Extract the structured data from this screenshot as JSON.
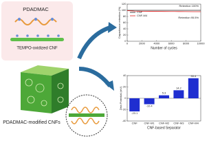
{
  "diagram": {
    "pdadmac": "PDADMAC",
    "tempo": "TEMPO-oxidized CNF",
    "modified": "PDADMAC-modified CNFs"
  },
  "chart_data": [
    {
      "type": "line",
      "x_label": "Number of cycles",
      "y_label": "Capacitance retention (%)",
      "x": [
        0,
        1000,
        2000,
        3000,
        4000,
        5000,
        6000,
        7000,
        8000,
        9000,
        10000
      ],
      "series": [
        {
          "name": "CNF",
          "color": "#222222",
          "values": [
            100,
            100,
            100,
            100,
            100,
            100,
            100,
            100,
            100,
            100,
            100
          ]
        },
        {
          "name": "CNF-M4",
          "color": "#e02020",
          "values": [
            99,
            97.5,
            97,
            96.8,
            96.5,
            96.3,
            96.1,
            96,
            95.8,
            95.6,
            95.5
          ]
        }
      ],
      "annotations": [
        "Retention 100%",
        "Retention 95.5%"
      ],
      "xlim": [
        0,
        10000
      ],
      "xticks": [
        0,
        2000,
        4000,
        6000,
        8000,
        10000
      ],
      "ylim": [
        0,
        120
      ],
      "yticks": [
        0,
        20,
        40,
        60,
        80,
        100,
        120
      ]
    },
    {
      "type": "bar",
      "x_label": "CNF-based Separator",
      "y_label": "Zeta Potential (mV)",
      "categories": [
        "CNF",
        "CNF-M1",
        "CNF-M2",
        "CNF-M3",
        "CNF-M4"
      ],
      "values": [
        -23.1,
        -10.4,
        5.3,
        14.2,
        35.4
      ],
      "color": "#1f2ed0",
      "ylim": [
        -40,
        40
      ],
      "yticks": [
        -40,
        -20,
        0,
        20,
        40
      ]
    }
  ]
}
